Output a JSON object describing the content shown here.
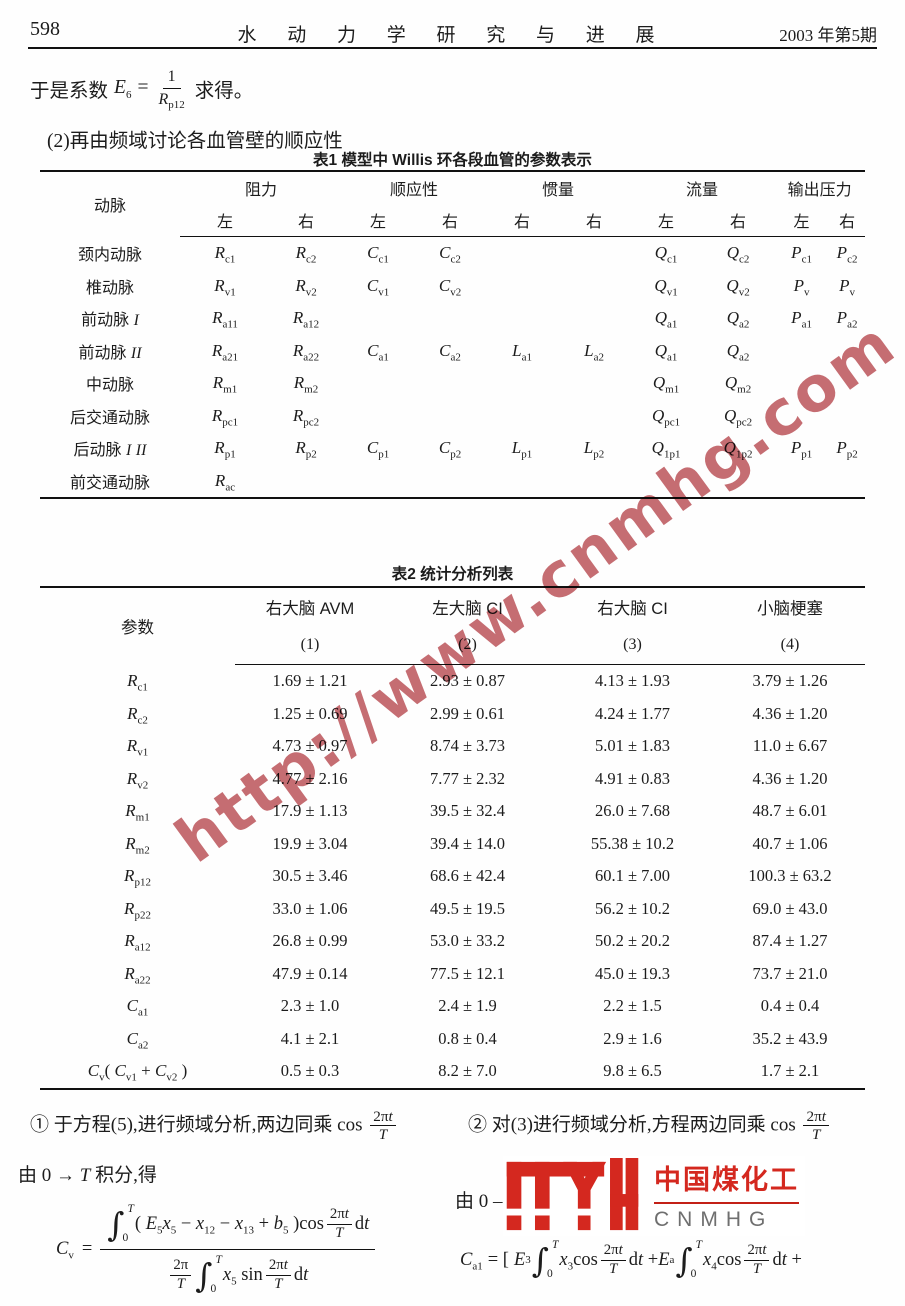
{
  "header": {
    "page_number": "598",
    "journal_title": "水 动 力 学 研 究 与 进 展",
    "issue": "2003 年第5期"
  },
  "intro": {
    "prefix": "于是系数",
    "var": "E_{6}",
    "equals": "=",
    "frac_num": "1",
    "frac_den": "R_{p12}",
    "suffix": "求得。",
    "line2": "(2)再由频域讨论各血管壁的顺应性"
  },
  "table1": {
    "title": "表1  模型中 Willis 环各段血管的参数表示",
    "artery_header": "动脉",
    "groups": [
      {
        "label": "阻力",
        "subs": [
          "左",
          "右"
        ]
      },
      {
        "label": "顺应性",
        "subs": [
          "左",
          "右"
        ]
      },
      {
        "label": "惯量",
        "subs": [
          "右",
          "右"
        ]
      },
      {
        "label": "流量",
        "subs": [
          "左",
          "右"
        ]
      },
      {
        "label": "输出压力",
        "subs": [
          "左",
          "右"
        ]
      }
    ],
    "rows": [
      {
        "name": "颈内动脉",
        "cells": [
          "R_{c1}",
          "R_{c2}",
          "C_{c1}",
          "C_{c2}",
          "",
          "",
          "Q_{c1}",
          "Q_{c2}",
          "P_{c1}",
          "P_{c2}"
        ]
      },
      {
        "name": "椎动脉",
        "cells": [
          "R_{v1}",
          "R_{v2}",
          "C_{v1}",
          "C_{v2}",
          "",
          "",
          "Q_{v1}",
          "Q_{v2}",
          "P_{v}",
          "P_{v}"
        ]
      },
      {
        "name": "前动脉 *I*",
        "cells": [
          "R_{a11}",
          "R_{a12}",
          "",
          "",
          "",
          "",
          "Q_{a1}",
          "Q_{a2}",
          "P_{a1}",
          "P_{a2}"
        ]
      },
      {
        "name": "前动脉 *II*",
        "cells": [
          "R_{a21}",
          "R_{a22}",
          "C_{a1}",
          "C_{a2}",
          "L_{a1}",
          "L_{a2}",
          "Q_{a1}",
          "Q_{a2}",
          "",
          ""
        ]
      },
      {
        "name": "中动脉",
        "cells": [
          "R_{m1}",
          "R_{m2}",
          "",
          "",
          "",
          "",
          "Q_{m1}",
          "Q_{m2}",
          "",
          ""
        ]
      },
      {
        "name": "后交通动脉",
        "cells": [
          "R_{pc1}",
          "R_{pc2}",
          "",
          "",
          "",
          "",
          "Q_{pc1}",
          "Q_{pc2}",
          "",
          ""
        ]
      },
      {
        "name": "后动脉 *I* *II*",
        "cells": [
          "R_{p1}",
          "R_{p2}",
          "C_{p1}",
          "C_{p2}",
          "L_{p1}",
          "L_{p2}",
          "Q_{1p1}",
          "Q_{1p2}",
          "P_{p1}",
          "P_{p2}"
        ]
      },
      {
        "name": "前交通动脉",
        "cells": [
          "R_{ac}",
          "",
          "",
          "",
          "",
          "",
          "",
          "",
          "",
          ""
        ]
      }
    ]
  },
  "table2": {
    "title": "表2  统计分析列表",
    "param_header": "参数",
    "columns": [
      {
        "name": "右大脑 AVM",
        "num": "(1)"
      },
      {
        "name": "左大脑 CI",
        "num": "(2)"
      },
      {
        "name": "右大脑 CI",
        "num": "(3)"
      },
      {
        "name": "小脑梗塞",
        "num": "(4)"
      }
    ],
    "rows": [
      {
        "param": "R_{c1}",
        "values": [
          "1.69 ± 1.21",
          "2.93 ± 0.87",
          "4.13 ± 1.93",
          "3.79 ± 1.26"
        ]
      },
      {
        "param": "R_{c2}",
        "values": [
          "1.25 ± 0.69",
          "2.99 ± 0.61",
          "4.24 ± 1.77",
          "4.36 ± 1.20"
        ]
      },
      {
        "param": "R_{v1}",
        "values": [
          "4.73 ± 0.97",
          "8.74 ± 3.73",
          "5.01 ± 1.83",
          "11.0 ± 6.67"
        ]
      },
      {
        "param": "R_{v2}",
        "values": [
          "4.77 ± 2.16",
          "7.77 ± 2.32",
          "4.91 ± 0.83",
          "4.36 ± 1.20"
        ]
      },
      {
        "param": "R_{m1}",
        "values": [
          "17.9 ± 1.13",
          "39.5 ± 32.4",
          "26.0 ± 7.68",
          "48.7 ± 6.01"
        ]
      },
      {
        "param": "R_{m2}",
        "values": [
          "19.9 ± 3.04",
          "39.4 ± 14.0",
          "55.38 ± 10.2",
          "40.7 ± 1.06"
        ]
      },
      {
        "param": "R_{p12}",
        "values": [
          "30.5 ± 3.46",
          "68.6 ± 42.4",
          "60.1 ± 7.00",
          "100.3 ± 63.2"
        ]
      },
      {
        "param": "R_{p22}",
        "values": [
          "33.0 ± 1.06",
          "49.5 ± 19.5",
          "56.2 ± 10.2",
          "69.0 ± 43.0"
        ]
      },
      {
        "param": "R_{a12}",
        "values": [
          "26.8 ± 0.99",
          "53.0 ± 33.2",
          "50.2 ± 20.2",
          "87.4 ± 1.27"
        ]
      },
      {
        "param": "R_{a22}",
        "values": [
          "47.9 ± 0.14",
          "77.5 ± 12.1",
          "45.0 ± 19.3",
          "73.7 ± 21.0"
        ]
      },
      {
        "param": "C_{a1}",
        "values": [
          "2.3 ± 1.0",
          "2.4 ± 1.9",
          "2.2 ± 1.5",
          "0.4 ± 0.4"
        ]
      },
      {
        "param": "C_{a2}",
        "values": [
          "4.1 ± 2.1",
          "0.8 ± 0.4",
          "2.9 ± 1.6",
          "35.2 ± 43.9"
        ]
      },
      {
        "param": "C_{v}( C_{v1} + C_{v2} )",
        "values": [
          "0.5 ± 0.3",
          "8.2 ± 7.0",
          "9.8 ± 6.5",
          "1.7 ± 2.1"
        ]
      }
    ]
  },
  "notes": {
    "n1_line1": "① 于方程(5),进行频域分析,两边同乘 cos",
    "n1_frac_num": "2π*t*",
    "n1_frac_den": "*T*",
    "n1_line2": "由 0 → *T* 积分,得",
    "n2_line1": "② 对(3)进行频域分析,方程两边同乘 cos",
    "n2_frac_num": "2π*t*",
    "n2_frac_den": "*T*",
    "n2_line2": "由 0 –"
  },
  "formula_cv": {
    "lhs": "C_{v}",
    "equals": "=",
    "num_int_sup": "T",
    "num_int_sub": "0",
    "num_body": "( E_{5}x_{5} − x_{12} − x_{13} + b_{5} )cos",
    "num_frac_num": "2π*t*",
    "num_frac_den": "*T*",
    "num_tail": "d*t*",
    "den_pre_num": "2π",
    "den_pre_den": "*T*",
    "den_int_sup": "T",
    "den_int_sub": "0",
    "den_body": "x_{5} sin",
    "den_frac_num": "2π*t*",
    "den_frac_den": "*T*",
    "den_tail": "d*t*"
  },
  "formula_ca1": {
    "lhs": "C_{a1}",
    "equals": "= [",
    "terms": [
      {
        "coef": "E_{3}",
        "int_sup": "T",
        "int_sub": "0",
        "body": "x_{3}cos",
        "frac_num": "2π*t*",
        "frac_den": "*T*",
        "tail": "d*t* +"
      },
      {
        "coef": "E_{a}",
        "int_sup": "T",
        "int_sub": "0",
        "body": "x_{4}cos",
        "frac_num": "2π*t*",
        "frac_den": "*T*",
        "tail": "d*t* +"
      }
    ]
  },
  "watermark": "http://www.cnmhg.com",
  "logo": {
    "cn": "中国煤化工",
    "en": "CNMHG"
  },
  "colors": {
    "watermark": "#b8484f",
    "logo_red": "#d4281f",
    "logo_gray": "#6f6f6f",
    "text": "#1c1c1c"
  }
}
